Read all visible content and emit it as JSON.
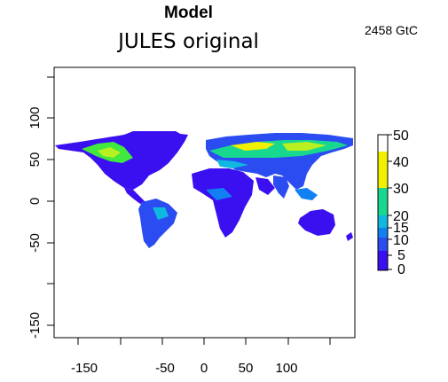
{
  "header": {
    "title": "Model",
    "subtitle": "JULES original",
    "total": "2458 GtC"
  },
  "map": {
    "x_ticks": [
      "-150",
      "-50",
      "0",
      "50",
      "100"
    ],
    "y_ticks": [
      "100",
      "50",
      "0",
      "-50",
      "-150"
    ],
    "projection": "longitude-latitude"
  },
  "colorbar": {
    "ticks": [
      "50",
      "40",
      "30",
      "20",
      "15",
      "10",
      "5",
      "0"
    ],
    "colors": [
      "#3a0ff0",
      "#2a4cf0",
      "#1080f2",
      "#10b8e0",
      "#18d890",
      "#40e840",
      "#b8f020",
      "#f0f000"
    ]
  }
}
